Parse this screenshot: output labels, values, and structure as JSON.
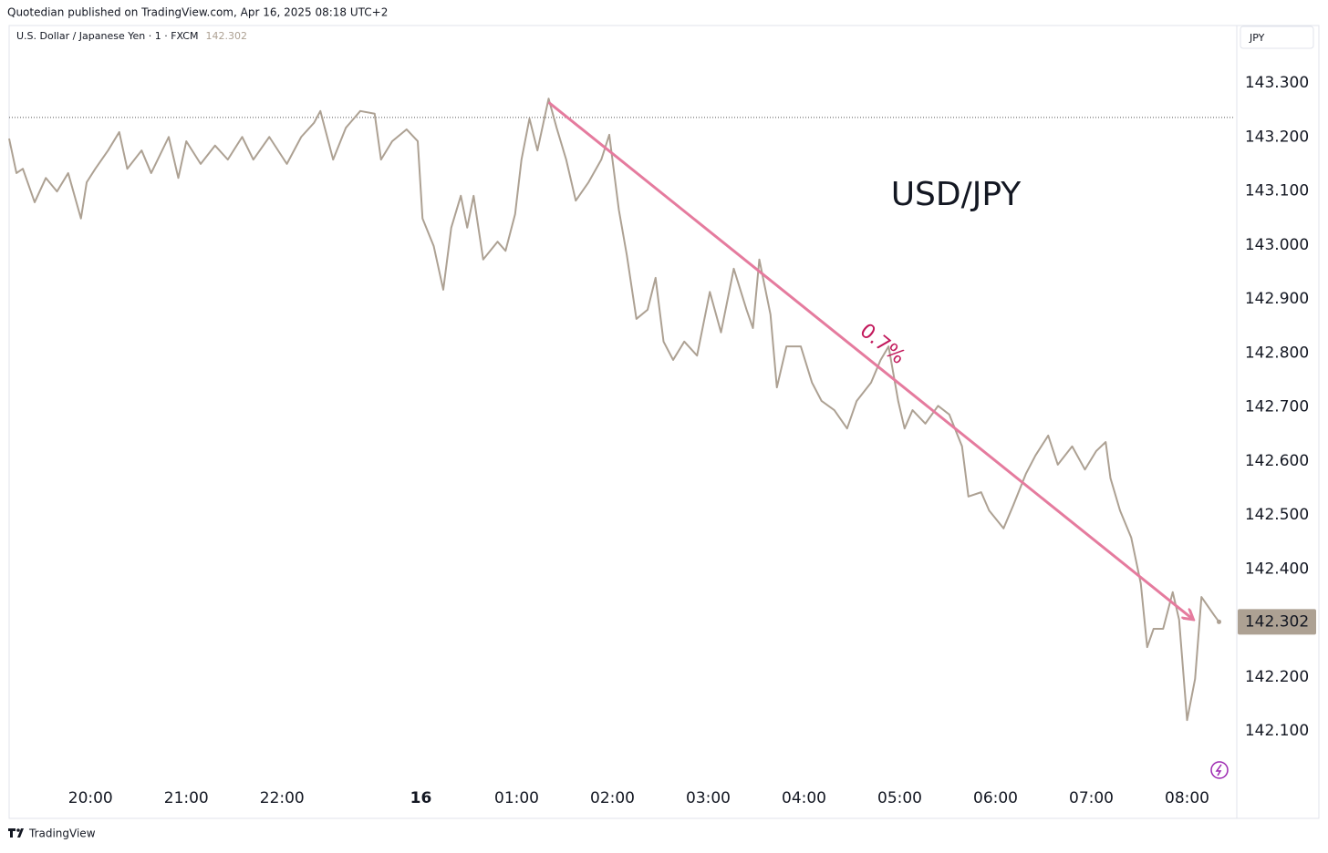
{
  "header": {
    "publisher": "Quotedian published on TradingView.com, Apr 16, 2025 08:18 UTC+2",
    "symbol": "U.S. Dollar / Japanese Yen · 1 · FXCM",
    "currency": "JPY",
    "footer": "TradingView"
  },
  "chart_data": {
    "type": "line",
    "title": "USD/JPY",
    "color": "#ada193",
    "last_price": 142.302,
    "prev_close": 143.236,
    "x": [
      0,
      4.6,
      8.6,
      16,
      23,
      30,
      37,
      45,
      48.6,
      54,
      62,
      69,
      74,
      83,
      89,
      100,
      106,
      111,
      120,
      129,
      137,
      146,
      153,
      163,
      174,
      183,
      191,
      195,
      203,
      211,
      220,
      229,
      233,
      240,
      249,
      256,
      259,
      266,
      272,
      277,
      283,
      287,
      291,
      297,
      306,
      311,
      317,
      321,
      326,
      331,
      338,
      343,
      349,
      355,
      363,
      371,
      376,
      382,
      387,
      393,
      400,
      405,
      410,
      416,
      423,
      431,
      439,
      446,
      454,
      462,
      466,
      470,
      477,
      481,
      487,
      496,
      503,
      509,
      517,
      525,
      531,
      540,
      546,
      551,
      557,
      561,
      566,
      574,
      582,
      589,
      597,
      601,
      609,
      614,
      623,
      629,
      637,
      643,
      651,
      657,
      666,
      674,
      681,
      687,
      690,
      696,
      703,
      709,
      713,
      717,
      723,
      729,
      733,
      738,
      743,
      747,
      751,
      755,
      758
    ],
    "values": [
      143.197,
      143.133,
      143.141,
      143.079,
      143.124,
      143.099,
      143.133,
      143.049,
      143.116,
      143.141,
      143.175,
      143.209,
      143.141,
      143.175,
      143.133,
      143.2,
      143.124,
      143.192,
      143.15,
      143.184,
      143.158,
      143.2,
      143.158,
      143.2,
      143.15,
      143.2,
      143.226,
      143.248,
      143.158,
      143.217,
      143.248,
      143.243,
      143.158,
      143.192,
      143.214,
      143.192,
      143.049,
      142.998,
      142.917,
      143.032,
      143.091,
      143.032,
      143.091,
      142.973,
      143.006,
      142.989,
      143.057,
      143.158,
      143.234,
      143.175,
      143.271,
      143.217,
      143.158,
      143.082,
      143.116,
      143.158,
      143.204,
      143.065,
      142.981,
      142.863,
      142.88,
      142.939,
      142.821,
      142.787,
      142.821,
      142.795,
      142.913,
      142.838,
      142.956,
      142.88,
      142.846,
      142.973,
      142.871,
      142.736,
      142.812,
      142.812,
      142.745,
      142.711,
      142.694,
      142.66,
      142.711,
      142.745,
      142.787,
      142.812,
      142.711,
      142.66,
      142.694,
      142.669,
      142.702,
      142.686,
      142.627,
      142.534,
      142.542,
      142.508,
      142.475,
      142.517,
      142.576,
      142.61,
      142.647,
      142.593,
      142.627,
      142.584,
      142.618,
      142.635,
      142.568,
      142.508,
      142.458,
      142.373,
      142.255,
      142.289,
      142.289,
      142.357,
      142.306,
      142.12,
      142.196,
      142.348,
      142.331,
      142.314,
      142.302
    ],
    "xlim": [
      0,
      768
    ],
    "xticks": [
      {
        "value": 51,
        "label": "20:00"
      },
      {
        "value": 111,
        "label": "21:00"
      },
      {
        "value": 171,
        "label": "22:00"
      },
      {
        "value": 258,
        "label": "16"
      },
      {
        "value": 318,
        "label": "01:00"
      },
      {
        "value": 378,
        "label": "02:00"
      },
      {
        "value": 438,
        "label": "03:00"
      },
      {
        "value": 498,
        "label": "04:00"
      },
      {
        "value": 558,
        "label": "05:00"
      },
      {
        "value": 618,
        "label": "06:00"
      },
      {
        "value": 678,
        "label": "07:00"
      },
      {
        "value": 738,
        "label": "08:00"
      }
    ],
    "ylim": [
      142.0,
      143.4
    ],
    "yticks": [
      {
        "value": 142.1,
        "label": "142.100"
      },
      {
        "value": 142.2,
        "label": "142.200"
      },
      {
        "value": 142.4,
        "label": "142.400"
      },
      {
        "value": 142.5,
        "label": "142.500"
      },
      {
        "value": 142.6,
        "label": "142.600"
      },
      {
        "value": 142.7,
        "label": "142.700"
      },
      {
        "value": 142.8,
        "label": "142.800"
      },
      {
        "value": 142.9,
        "label": "142.900"
      },
      {
        "value": 143.0,
        "label": "143.000"
      },
      {
        "value": 143.1,
        "label": "143.100"
      },
      {
        "value": 143.2,
        "label": "143.200"
      },
      {
        "value": 143.3,
        "label": "143.300"
      }
    ],
    "trend_line": {
      "x": [
        338,
        742
      ],
      "values": [
        143.264,
        142.306
      ],
      "label": "0.7%",
      "color": "#e57b9e"
    }
  }
}
